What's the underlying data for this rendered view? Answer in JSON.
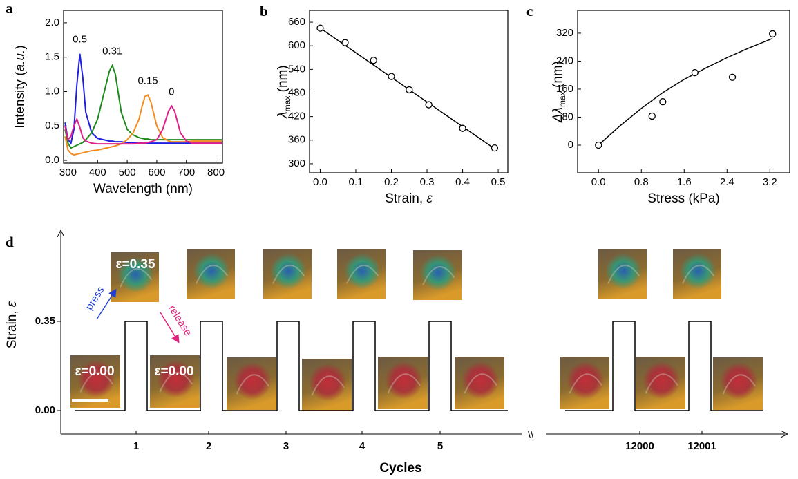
{
  "chart_data": [
    {
      "type": "line",
      "panel": "a",
      "xlabel": "Wavelength (nm)",
      "ylabel": [
        "Intensity (",
        "a.u.",
        ")"
      ],
      "x": [
        290,
        300,
        310,
        320,
        330,
        340,
        350,
        360,
        380,
        400,
        420,
        440,
        450,
        460,
        480,
        500,
        520,
        540,
        550,
        560,
        570,
        580,
        600,
        620,
        640,
        650,
        660,
        680,
        700,
        720,
        760,
        800,
        820
      ],
      "series": [
        {
          "name": "0.5",
          "color": "#1f1fe0",
          "values": [
            0.55,
            0.3,
            0.25,
            0.45,
            1.1,
            1.55,
            1.2,
            0.7,
            0.4,
            0.32,
            0.3,
            0.28,
            0.28,
            0.27,
            0.27,
            0.26,
            0.26,
            0.26,
            0.25,
            0.25,
            0.25,
            0.25,
            0.25,
            0.25,
            0.25,
            0.25,
            0.25,
            0.25,
            0.25,
            0.25,
            0.25,
            0.25,
            0.25
          ]
        },
        {
          "name": "0.31",
          "color": "#1e8a1e",
          "values": [
            0.45,
            0.25,
            0.18,
            0.2,
            0.22,
            0.24,
            0.26,
            0.3,
            0.4,
            0.6,
            0.95,
            1.3,
            1.38,
            1.25,
            0.7,
            0.45,
            0.37,
            0.33,
            0.32,
            0.31,
            0.31,
            0.3,
            0.3,
            0.3,
            0.3,
            0.3,
            0.3,
            0.3,
            0.3,
            0.3,
            0.3,
            0.3,
            0.3
          ]
        },
        {
          "name": "0.15",
          "color": "#f58a1f",
          "values": [
            0.35,
            0.15,
            0.1,
            0.08,
            0.09,
            0.1,
            0.11,
            0.12,
            0.14,
            0.15,
            0.17,
            0.19,
            0.2,
            0.21,
            0.24,
            0.3,
            0.4,
            0.6,
            0.78,
            0.93,
            0.95,
            0.85,
            0.5,
            0.33,
            0.28,
            0.27,
            0.27,
            0.27,
            0.27,
            0.28,
            0.28,
            0.28,
            0.28
          ]
        },
        {
          "name": "0",
          "color": "#e0208a",
          "values": [
            0.5,
            0.3,
            0.35,
            0.5,
            0.6,
            0.48,
            0.33,
            0.28,
            0.25,
            0.24,
            0.24,
            0.24,
            0.24,
            0.24,
            0.24,
            0.24,
            0.24,
            0.25,
            0.25,
            0.25,
            0.26,
            0.27,
            0.3,
            0.45,
            0.72,
            0.79,
            0.72,
            0.4,
            0.28,
            0.25,
            0.25,
            0.25,
            0.25
          ]
        }
      ],
      "xlim": [
        285,
        822
      ],
      "xticks": [
        300,
        400,
        500,
        600,
        700,
        800
      ],
      "ylim": [
        -0.04,
        2.18
      ],
      "yticks": [
        {
          "value": 0,
          "label": "0.0"
        },
        {
          "value": 0.5,
          "label": "0.5"
        },
        {
          "value": 1,
          "label": "1.0"
        },
        {
          "value": 1.5,
          "label": "1.5"
        },
        {
          "value": 2,
          "label": "2.0"
        }
      ]
    },
    {
      "type": "scatter",
      "panel": "b",
      "xlabel": [
        "Strain, ",
        "ε"
      ],
      "ylabel": [
        "λ",
        "max",
        " (nm)"
      ],
      "x": [
        0,
        0.07,
        0.15,
        0.2,
        0.25,
        0.305,
        0.4,
        0.49
      ],
      "y": [
        645,
        608,
        563,
        522,
        488,
        450,
        390,
        340
      ],
      "fit": {
        "x": [
          0,
          0.49
        ],
        "y": [
          645,
          338
        ]
      },
      "xlim": [
        -0.03,
        0.527
      ],
      "xticks": [
        {
          "value": 0,
          "label": "0.0"
        },
        {
          "value": 0.1,
          "label": "0.1"
        },
        {
          "value": 0.2,
          "label": "0.2"
        },
        {
          "value": 0.3,
          "label": "0.3"
        },
        {
          "value": 0.4,
          "label": "0.4"
        },
        {
          "value": 0.5,
          "label": "0.5"
        }
      ],
      "ylim": [
        277,
        690
      ],
      "yticks": [
        300,
        360,
        420,
        480,
        540,
        600,
        660
      ]
    },
    {
      "type": "scatter",
      "panel": "c",
      "xlabel": [
        "Stress (kPa)"
      ],
      "ylabel": [
        "Δλ",
        "max",
        " (nm)"
      ],
      "x": [
        0,
        1.0,
        1.2,
        1.8,
        2.5,
        3.25
      ],
      "y": [
        0,
        83,
        124,
        207,
        194,
        318
      ],
      "fit": {
        "x": [
          0,
          0.4,
          0.8,
          1.2,
          1.6,
          2.0,
          2.4,
          2.8,
          3.25
        ],
        "y": [
          0,
          55,
          105,
          150,
          188,
          220,
          250,
          277,
          305
        ]
      },
      "xlim": [
        -0.39,
        3.57
      ],
      "xticks": [
        {
          "value": 0,
          "label": "0.0"
        },
        {
          "value": 0.8,
          "label": "0.8"
        },
        {
          "value": 1.6,
          "label": "1.6"
        },
        {
          "value": 2.4,
          "label": "2.4"
        },
        {
          "value": 3.2,
          "label": "3.2"
        }
      ],
      "ylim": [
        -79,
        385
      ],
      "yticks": [
        0,
        80,
        160,
        240,
        320
      ]
    },
    {
      "type": "step",
      "panel": "d",
      "xlabel": "Cycles",
      "ylabel": [
        "Strain, ",
        "ε"
      ],
      "categories": [
        "1",
        "2",
        "3",
        "4",
        "5",
        "12000",
        "12001"
      ],
      "ylim": [
        -0.09,
        0.7
      ],
      "yticks": [
        {
          "value": 0,
          "label": "0.00"
        },
        {
          "value": 0.35,
          "label": "0.35"
        }
      ],
      "axis_break": "\\\\",
      "press": "press",
      "release": "release",
      "pressed_label": "ε=0.35",
      "released_labels": [
        "ε=0.00",
        "ε=0.00"
      ]
    }
  ]
}
